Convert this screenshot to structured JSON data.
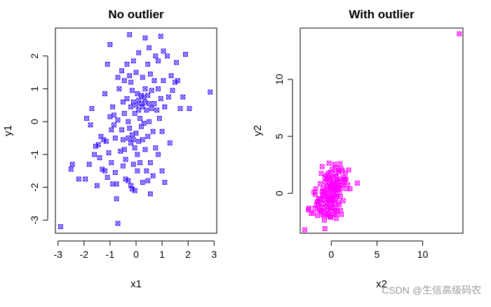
{
  "watermark": "CSDN @生信高级码农",
  "chart_data": [
    {
      "type": "scatter",
      "title": "No outlier",
      "xlabel": "x1",
      "ylabel": "y1",
      "xlim": [
        -3.1,
        3.1
      ],
      "ylim": [
        -3.4,
        2.85
      ],
      "xticks": [
        "-3",
        "-2",
        "-1",
        "0",
        "1",
        "2",
        "3"
      ],
      "yticks": [
        "-3",
        "-2",
        "-1",
        "0",
        "1",
        "2"
      ],
      "marker": "box-x",
      "color": "#3a18ff",
      "grid": false,
      "points": [
        [
          -2.9,
          -3.2
        ],
        [
          -2.5,
          -1.45
        ],
        [
          -2.45,
          -1.3
        ],
        [
          -2.2,
          -1.75
        ],
        [
          -1.95,
          -1.75
        ],
        [
          -1.9,
          0.1
        ],
        [
          -1.8,
          -1.3
        ],
        [
          -1.75,
          -0.1
        ],
        [
          -1.7,
          0.4
        ],
        [
          -1.6,
          -1.0
        ],
        [
          -1.55,
          -0.75
        ],
        [
          -1.5,
          -1.95
        ],
        [
          -1.45,
          -0.7
        ],
        [
          -1.4,
          -1.1
        ],
        [
          -1.35,
          -0.45
        ],
        [
          -1.3,
          -1.45
        ],
        [
          -1.25,
          -0.55
        ],
        [
          -1.2,
          0.85
        ],
        [
          -1.2,
          -1.5
        ],
        [
          -1.15,
          -0.6
        ],
        [
          -1.1,
          1.75
        ],
        [
          -1.1,
          -1.7
        ],
        [
          -1.05,
          -0.95
        ],
        [
          -1.0,
          2.35
        ],
        [
          -1.0,
          0.15
        ],
        [
          -0.95,
          -0.25
        ],
        [
          -0.95,
          -1.25
        ],
        [
          -0.9,
          0.45
        ],
        [
          -0.9,
          -1.9
        ],
        [
          -0.85,
          0.2
        ],
        [
          -0.85,
          -0.1
        ],
        [
          -0.8,
          -0.5
        ],
        [
          -0.8,
          -1.55
        ],
        [
          -0.75,
          -1.9
        ],
        [
          -0.75,
          -2.35
        ],
        [
          -0.7,
          1.35
        ],
        [
          -0.7,
          0.05
        ],
        [
          -0.7,
          -3.1
        ],
        [
          -0.65,
          1.0
        ],
        [
          -0.6,
          -0.9
        ],
        [
          -0.55,
          1.55
        ],
        [
          -0.55,
          -0.25
        ],
        [
          -0.5,
          0.6
        ],
        [
          -0.5,
          -0.55
        ],
        [
          -0.5,
          -1.35
        ],
        [
          -0.45,
          1.25
        ],
        [
          -0.45,
          0.25
        ],
        [
          -0.45,
          -0.85
        ],
        [
          -0.4,
          -1.15
        ],
        [
          -0.4,
          -1.75
        ],
        [
          -0.35,
          1.75
        ],
        [
          -0.35,
          0.7
        ],
        [
          -0.3,
          0.0
        ],
        [
          -0.3,
          -0.5
        ],
        [
          -0.3,
          -1.8
        ],
        [
          -0.25,
          2.65
        ],
        [
          -0.25,
          1.4
        ],
        [
          -0.25,
          -0.2
        ],
        [
          -0.2,
          1.2
        ],
        [
          -0.2,
          0.45
        ],
        [
          -0.2,
          -0.65
        ],
        [
          -0.2,
          -1.95
        ],
        [
          -0.15,
          0.95
        ],
        [
          -0.15,
          -0.4
        ],
        [
          -0.15,
          -2.05
        ],
        [
          -0.1,
          1.85
        ],
        [
          -0.1,
          0.6
        ],
        [
          -0.1,
          -0.55
        ],
        [
          -0.1,
          -1.3
        ],
        [
          -0.05,
          0.25
        ],
        [
          -0.05,
          -0.8
        ],
        [
          -0.05,
          -2.1
        ],
        [
          0.0,
          1.5
        ],
        [
          0.0,
          0.5
        ],
        [
          0.0,
          -0.35
        ],
        [
          0.05,
          0.85
        ],
        [
          0.05,
          -1.0
        ],
        [
          0.05,
          -1.5
        ],
        [
          0.1,
          2.1
        ],
        [
          0.1,
          0.65
        ],
        [
          0.1,
          0.35
        ],
        [
          0.1,
          -0.6
        ],
        [
          0.15,
          0.1
        ],
        [
          0.15,
          -1.25
        ],
        [
          0.2,
          0.8
        ],
        [
          0.2,
          0.55
        ],
        [
          0.2,
          -0.15
        ],
        [
          0.25,
          1.35
        ],
        [
          0.25,
          0.45
        ],
        [
          0.25,
          -0.55
        ],
        [
          0.25,
          -1.85
        ],
        [
          0.3,
          0.75
        ],
        [
          0.3,
          -0.05
        ],
        [
          0.35,
          2.55
        ],
        [
          0.35,
          1.0
        ],
        [
          0.35,
          0.6
        ],
        [
          0.35,
          -0.85
        ],
        [
          0.4,
          0.35
        ],
        [
          0.4,
          -1.5
        ],
        [
          0.45,
          1.75
        ],
        [
          0.45,
          0.8
        ],
        [
          0.45,
          -0.45
        ],
        [
          0.45,
          -1.8
        ],
        [
          0.5,
          2.25
        ],
        [
          0.5,
          0.55
        ],
        [
          0.5,
          0.0
        ],
        [
          0.55,
          1.45
        ],
        [
          0.55,
          -1.25
        ],
        [
          0.55,
          -2.2
        ],
        [
          0.6,
          0.95
        ],
        [
          0.6,
          0.4
        ],
        [
          0.65,
          -0.3
        ],
        [
          0.65,
          -1.65
        ],
        [
          0.7,
          1.25
        ],
        [
          0.7,
          0.55
        ],
        [
          0.75,
          2.0
        ],
        [
          0.75,
          -0.8
        ],
        [
          0.8,
          0.35
        ],
        [
          0.85,
          1.85
        ],
        [
          0.85,
          1.0
        ],
        [
          0.85,
          -1.0
        ],
        [
          0.9,
          0.1
        ],
        [
          0.95,
          2.6
        ],
        [
          0.95,
          0.7
        ],
        [
          1.0,
          -0.3
        ],
        [
          1.0,
          -1.5
        ],
        [
          1.05,
          2.15
        ],
        [
          1.05,
          1.25
        ],
        [
          1.1,
          0.45
        ],
        [
          1.1,
          -1.85
        ],
        [
          1.2,
          2.0
        ],
        [
          1.25,
          0.75
        ],
        [
          1.3,
          -0.65
        ],
        [
          1.35,
          1.4
        ],
        [
          1.4,
          0.95
        ],
        [
          1.5,
          1.2
        ],
        [
          1.55,
          1.8
        ],
        [
          1.6,
          1.25
        ],
        [
          1.7,
          0.4
        ],
        [
          1.8,
          0.75
        ],
        [
          1.9,
          2.05
        ],
        [
          2.05,
          0.4
        ],
        [
          2.85,
          0.9
        ]
      ]
    },
    {
      "type": "scatter",
      "title": "With outlier",
      "xlabel": "x2",
      "ylabel": "y2",
      "xlim": [
        -3.4,
        14.4
      ],
      "ylim": [
        -3.5,
        14.5
      ],
      "xticks": [
        "0",
        "5",
        "10"
      ],
      "yticks": [
        "0",
        "5",
        "10"
      ],
      "marker": "box-x",
      "color": "#ff00ff",
      "grid": false,
      "points": [
        [
          -2.9,
          -3.2
        ],
        [
          -2.5,
          -1.45
        ],
        [
          -2.45,
          -1.3
        ],
        [
          -2.2,
          -1.75
        ],
        [
          -1.95,
          -1.75
        ],
        [
          -1.9,
          0.1
        ],
        [
          -1.8,
          -1.3
        ],
        [
          -1.75,
          -0.1
        ],
        [
          -1.7,
          0.4
        ],
        [
          -1.6,
          -1.0
        ],
        [
          -1.55,
          -0.75
        ],
        [
          -1.5,
          -1.95
        ],
        [
          -1.45,
          -0.7
        ],
        [
          -1.4,
          -1.1
        ],
        [
          -1.35,
          -0.45
        ],
        [
          -1.3,
          -1.45
        ],
        [
          -1.25,
          -0.55
        ],
        [
          -1.2,
          0.85
        ],
        [
          -1.2,
          -1.5
        ],
        [
          -1.15,
          -0.6
        ],
        [
          -1.1,
          1.75
        ],
        [
          -1.1,
          -1.7
        ],
        [
          -1.05,
          -0.95
        ],
        [
          -1.0,
          2.35
        ],
        [
          -1.0,
          0.15
        ],
        [
          -0.95,
          -0.25
        ],
        [
          -0.95,
          -1.25
        ],
        [
          -0.9,
          0.45
        ],
        [
          -0.9,
          -1.9
        ],
        [
          -0.85,
          0.2
        ],
        [
          -0.85,
          -0.1
        ],
        [
          -0.8,
          -0.5
        ],
        [
          -0.8,
          -1.55
        ],
        [
          -0.75,
          -1.9
        ],
        [
          -0.75,
          -2.35
        ],
        [
          -0.7,
          1.35
        ],
        [
          -0.7,
          0.05
        ],
        [
          -0.7,
          -3.1
        ],
        [
          -0.65,
          1.0
        ],
        [
          -0.6,
          -0.9
        ],
        [
          -0.55,
          1.55
        ],
        [
          -0.55,
          -0.25
        ],
        [
          -0.5,
          0.6
        ],
        [
          -0.5,
          -0.55
        ],
        [
          -0.5,
          -1.35
        ],
        [
          -0.45,
          1.25
        ],
        [
          -0.45,
          0.25
        ],
        [
          -0.45,
          -0.85
        ],
        [
          -0.4,
          -1.15
        ],
        [
          -0.4,
          -1.75
        ],
        [
          -0.35,
          1.75
        ],
        [
          -0.35,
          0.7
        ],
        [
          -0.3,
          0.0
        ],
        [
          -0.3,
          -0.5
        ],
        [
          -0.3,
          -1.8
        ],
        [
          -0.25,
          2.65
        ],
        [
          -0.25,
          1.4
        ],
        [
          -0.25,
          -0.2
        ],
        [
          -0.2,
          1.2
        ],
        [
          -0.2,
          0.45
        ],
        [
          -0.2,
          -0.65
        ],
        [
          -0.2,
          -1.95
        ],
        [
          -0.15,
          0.95
        ],
        [
          -0.15,
          -0.4
        ],
        [
          -0.15,
          -2.05
        ],
        [
          -0.1,
          1.85
        ],
        [
          -0.1,
          0.6
        ],
        [
          -0.1,
          -0.55
        ],
        [
          -0.1,
          -1.3
        ],
        [
          -0.05,
          0.25
        ],
        [
          -0.05,
          -0.8
        ],
        [
          -0.05,
          -2.1
        ],
        [
          0.0,
          1.5
        ],
        [
          0.0,
          0.5
        ],
        [
          0.0,
          -0.35
        ],
        [
          0.05,
          0.85
        ],
        [
          0.05,
          -1.0
        ],
        [
          0.05,
          -1.5
        ],
        [
          0.1,
          2.1
        ],
        [
          0.1,
          0.65
        ],
        [
          0.1,
          0.35
        ],
        [
          0.1,
          -0.6
        ],
        [
          0.15,
          0.1
        ],
        [
          0.15,
          -1.25
        ],
        [
          0.2,
          0.8
        ],
        [
          0.2,
          0.55
        ],
        [
          0.2,
          -0.15
        ],
        [
          0.25,
          1.35
        ],
        [
          0.25,
          0.45
        ],
        [
          0.25,
          -0.55
        ],
        [
          0.25,
          -1.85
        ],
        [
          0.3,
          0.75
        ],
        [
          0.3,
          -0.05
        ],
        [
          0.35,
          2.55
        ],
        [
          0.35,
          1.0
        ],
        [
          0.35,
          0.6
        ],
        [
          0.35,
          -0.85
        ],
        [
          0.4,
          0.35
        ],
        [
          0.4,
          -1.5
        ],
        [
          0.45,
          1.75
        ],
        [
          0.45,
          0.8
        ],
        [
          0.45,
          -0.45
        ],
        [
          0.45,
          -1.8
        ],
        [
          0.5,
          2.25
        ],
        [
          0.5,
          0.55
        ],
        [
          0.5,
          0.0
        ],
        [
          0.55,
          1.45
        ],
        [
          0.55,
          -1.25
        ],
        [
          0.55,
          -2.2
        ],
        [
          0.6,
          0.95
        ],
        [
          0.6,
          0.4
        ],
        [
          0.65,
          -0.3
        ],
        [
          0.65,
          -1.65
        ],
        [
          0.7,
          1.25
        ],
        [
          0.7,
          0.55
        ],
        [
          0.75,
          2.0
        ],
        [
          0.75,
          -0.8
        ],
        [
          0.8,
          0.35
        ],
        [
          0.85,
          1.85
        ],
        [
          0.85,
          1.0
        ],
        [
          0.85,
          -1.0
        ],
        [
          0.9,
          0.1
        ],
        [
          0.95,
          2.6
        ],
        [
          0.95,
          0.7
        ],
        [
          1.0,
          -0.3
        ],
        [
          1.0,
          -1.5
        ],
        [
          1.05,
          2.15
        ],
        [
          1.05,
          1.25
        ],
        [
          1.1,
          0.45
        ],
        [
          1.1,
          -1.85
        ],
        [
          1.2,
          2.0
        ],
        [
          1.25,
          0.75
        ],
        [
          1.3,
          -0.65
        ],
        [
          1.35,
          1.4
        ],
        [
          1.4,
          0.95
        ],
        [
          1.5,
          1.2
        ],
        [
          1.55,
          1.8
        ],
        [
          1.6,
          1.25
        ],
        [
          1.7,
          0.4
        ],
        [
          1.8,
          0.75
        ],
        [
          1.9,
          2.05
        ],
        [
          2.05,
          0.4
        ],
        [
          2.85,
          0.9
        ],
        [
          14.0,
          14.0
        ]
      ]
    }
  ]
}
